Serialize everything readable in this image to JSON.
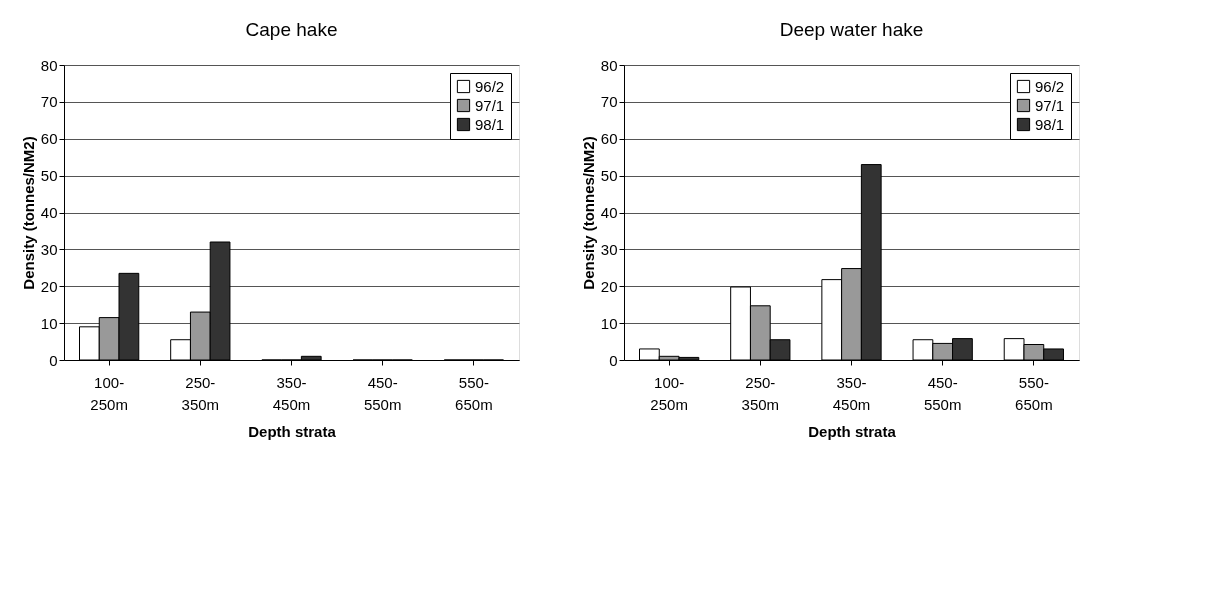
{
  "chart_data": [
    {
      "type": "bar",
      "title": "Cape hake",
      "xlabel": "Depth strata",
      "ylabel": "Density (tonnes/NM2)",
      "categories": [
        "100-250m",
        "250-350m",
        "350-450m",
        "450-550m",
        "550-650m"
      ],
      "ylim": [
        0,
        80
      ],
      "yticks": [
        0,
        10,
        20,
        30,
        40,
        50,
        60,
        70,
        80
      ],
      "grid": "y",
      "legend": "top right",
      "series": [
        {
          "name": "96/2",
          "color": "#ffffff",
          "values": [
            9,
            5.5,
            0,
            0,
            0
          ]
        },
        {
          "name": "97/1",
          "color": "#999999",
          "values": [
            11.5,
            13,
            0,
            0,
            0
          ]
        },
        {
          "name": "98/1",
          "color": "#333333",
          "values": [
            23.5,
            32,
            1,
            0,
            0
          ]
        }
      ]
    },
    {
      "type": "bar",
      "title": "Deep water hake",
      "xlabel": "Depth strata",
      "ylabel": "Density (tonnes/NM2)",
      "categories": [
        "100-250m",
        "250-350m",
        "350-450m",
        "450-550m",
        "550-650m"
      ],
      "ylim": [
        0,
        80
      ],
      "yticks": [
        0,
        10,
        20,
        30,
        40,
        50,
        60,
        70,
        80
      ],
      "grid": "y",
      "legend": "top right",
      "series": [
        {
          "name": "96/2",
          "color": "#ffffff",
          "values": [
            3,
            19.8,
            21.8,
            5.5,
            5.8
          ]
        },
        {
          "name": "97/1",
          "color": "#999999",
          "values": [
            1,
            14.7,
            24.8,
            4.5,
            4.2
          ]
        },
        {
          "name": "98/1",
          "color": "#333333",
          "values": [
            0.7,
            5.5,
            53,
            5.8,
            3
          ]
        }
      ]
    }
  ]
}
